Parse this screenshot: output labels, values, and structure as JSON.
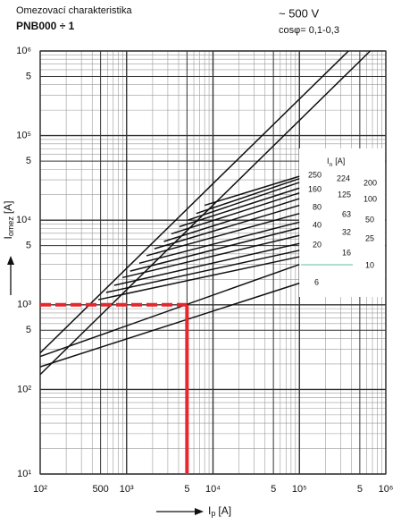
{
  "chart_data": {
    "type": "line",
    "title": "Omezovací charakteristika",
    "subtitle": "PNB000 ÷ 1",
    "annotations": [
      "~ 500 V",
      "cosφ= 0,1-0,3"
    ],
    "xlabel": {
      "main": "I",
      "sub": "p",
      "unit": "[A]"
    },
    "ylabel": {
      "main": "I",
      "sub": "omez",
      "unit": "[A]"
    },
    "legend_title": {
      "main": "I",
      "sub": "n",
      "unit": "[A]"
    },
    "log_x": true,
    "log_y": true,
    "grid": true,
    "xlim": [
      100,
      1000000
    ],
    "ylim": [
      10,
      1000000
    ],
    "xticks": [
      {
        "value": 100,
        "label": "10²"
      },
      500,
      {
        "value": 1000,
        "label": "10³"
      },
      {
        "value": 5000,
        "label": "5"
      },
      {
        "value": 10000,
        "label": "10⁴"
      },
      {
        "value": 50000,
        "label": "5"
      },
      {
        "value": 100000,
        "label": "10⁵"
      },
      {
        "value": 500000,
        "label": "5"
      },
      {
        "value": 1000000,
        "label": "10⁶"
      }
    ],
    "yticks": [
      {
        "value": 10,
        "label": "10¹"
      },
      {
        "value": 100,
        "label": "10²"
      },
      {
        "value": 500,
        "label": "5"
      },
      {
        "value": 1000,
        "label": "10³"
      },
      {
        "value": 5000,
        "label": "5"
      },
      {
        "value": 10000,
        "label": "10⁴"
      },
      {
        "value": 50000,
        "label": "5"
      },
      {
        "value": 100000,
        "label": "10⁵"
      },
      {
        "value": 500000,
        "label": "5"
      },
      {
        "value": 1000000,
        "label": "10⁶"
      }
    ],
    "xminor": [
      200,
      300,
      400,
      600,
      700,
      800,
      900,
      2000,
      3000,
      4000,
      6000,
      7000,
      8000,
      9000,
      20000,
      30000,
      40000,
      60000,
      70000,
      80000,
      90000,
      200000,
      300000,
      400000,
      600000,
      700000,
      800000,
      900000
    ],
    "yminor": [
      20,
      30,
      40,
      50,
      60,
      70,
      80,
      90,
      200,
      300,
      400,
      600,
      700,
      800,
      900,
      2000,
      3000,
      4000,
      6000,
      7000,
      8000,
      9000,
      20000,
      30000,
      40000,
      60000,
      70000,
      80000,
      90000,
      200000,
      300000,
      400000,
      600000,
      700000,
      800000,
      900000
    ],
    "color": "#111111",
    "series": [
      {
        "name": "250",
        "x": [
          8000,
          100000
        ],
        "values": [
          15000,
          33000
        ]
      },
      {
        "name": "224",
        "x": [
          6400,
          100000
        ],
        "values": [
          12000,
          31000
        ]
      },
      {
        "name": "200",
        "x": [
          5100,
          100000
        ],
        "values": [
          10000,
          28000
        ]
      },
      {
        "name": "160",
        "x": [
          4100,
          100000
        ],
        "values": [
          8400,
          24000
        ]
      },
      {
        "name": "125",
        "x": [
          3300,
          100000
        ],
        "values": [
          6900,
          21000
        ]
      },
      {
        "name": "100",
        "x": [
          2700,
          100000
        ],
        "values": [
          5600,
          18000
        ]
      },
      {
        "name": "80",
        "x": [
          2100,
          100000
        ],
        "values": [
          4600,
          15000
        ]
      },
      {
        "name": "63",
        "x": [
          1700,
          100000
        ],
        "values": [
          3800,
          12000
        ]
      },
      {
        "name": "50",
        "x": [
          1400,
          100000
        ],
        "values": [
          3100,
          9500
        ]
      },
      {
        "name": "40",
        "x": [
          1100,
          100000
        ],
        "values": [
          2500,
          8100
        ]
      },
      {
        "name": "32",
        "x": [
          900,
          100000
        ],
        "values": [
          2100,
          6600
        ]
      },
      {
        "name": "25",
        "x": [
          720,
          100000
        ],
        "values": [
          1700,
          5300
        ]
      },
      {
        "name": "20",
        "x": [
          580,
          100000
        ],
        "values": [
          1400,
          4400
        ]
      },
      {
        "name": "16",
        "x": [
          470,
          100000
        ],
        "values": [
          1150,
          3700
        ]
      },
      {
        "name": "10",
        "x": [
          100,
          100000
        ],
        "values": [
          245,
          3000
        ]
      },
      {
        "name": "6",
        "x": [
          100,
          100000
        ],
        "values": [
          185,
          1800
        ]
      }
    ],
    "envelope_lines": [
      {
        "x": [
          100,
          370000
        ],
        "values": [
          270,
          1000000
        ]
      },
      {
        "x": [
          100,
          660000
        ],
        "values": [
          150,
          1000000
        ]
      }
    ],
    "marker": {
      "x": 5000,
      "y": 1000,
      "color": "#e8262b"
    }
  }
}
